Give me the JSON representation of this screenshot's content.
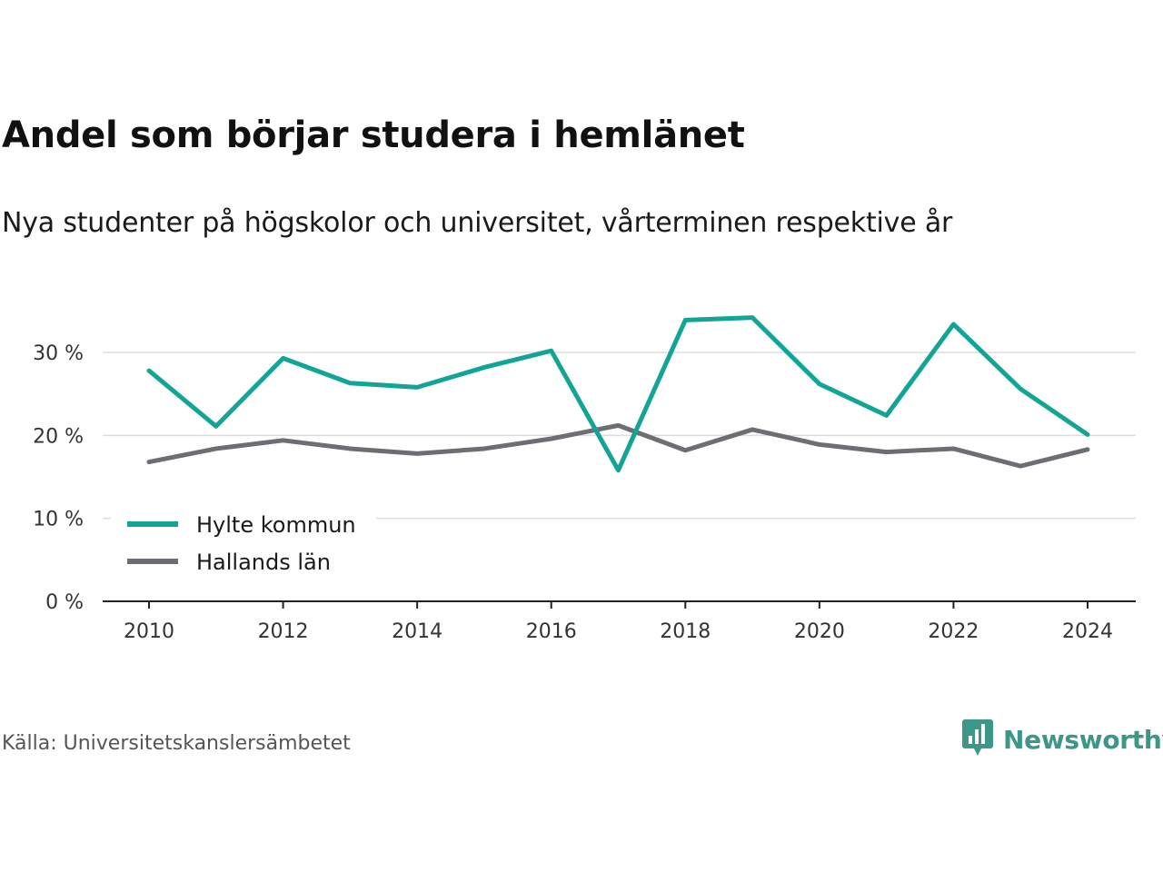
{
  "title": "Andel som börjar studera i hemlänet",
  "subtitle": "Nya studenter på högskolor och universitet, vårterminen respektive år",
  "source": "Källa: Universitetskanslersämbetet",
  "brand": {
    "name": "Newsworthy",
    "color": "#3d9688",
    "icon": "newsworthy-logo-icon"
  },
  "chart_data": {
    "type": "line",
    "title": "Andel som börjar studera i hemlänet",
    "subtitle": "Nya studenter på högskolor och universitet, vårterminen respektive år",
    "xlabel": "",
    "ylabel": "",
    "x": [
      2010,
      2011,
      2012,
      2013,
      2014,
      2015,
      2016,
      2017,
      2018,
      2019,
      2020,
      2021,
      2022,
      2023,
      2024
    ],
    "x_ticks": [
      2010,
      2012,
      2014,
      2016,
      2018,
      2020,
      2022,
      2024
    ],
    "x_tick_labels": [
      "2010",
      "2012",
      "2014",
      "2016",
      "2018",
      "2020",
      "2022",
      "2024"
    ],
    "y_ticks": [
      0,
      10,
      20,
      30
    ],
    "y_tick_labels": [
      "0 %",
      "10 %",
      "20 %",
      "30 %"
    ],
    "xlim": [
      2009.3,
      2024.7
    ],
    "ylim": [
      0,
      35
    ],
    "grid": true,
    "legend_position": "bottom-left",
    "series": [
      {
        "name": "Hylte kommun",
        "color": "#12a596",
        "values": [
          27.8,
          21.1,
          29.3,
          26.3,
          25.8,
          28.2,
          30.2,
          15.8,
          33.9,
          34.2,
          26.2,
          22.4,
          33.4,
          25.6,
          20.1
        ]
      },
      {
        "name": "Hallands län",
        "color": "#6e6d74",
        "values": [
          16.8,
          18.4,
          19.4,
          18.4,
          17.8,
          18.4,
          19.6,
          21.2,
          18.2,
          20.7,
          18.9,
          18.0,
          18.4,
          16.3,
          18.3
        ]
      }
    ]
  }
}
